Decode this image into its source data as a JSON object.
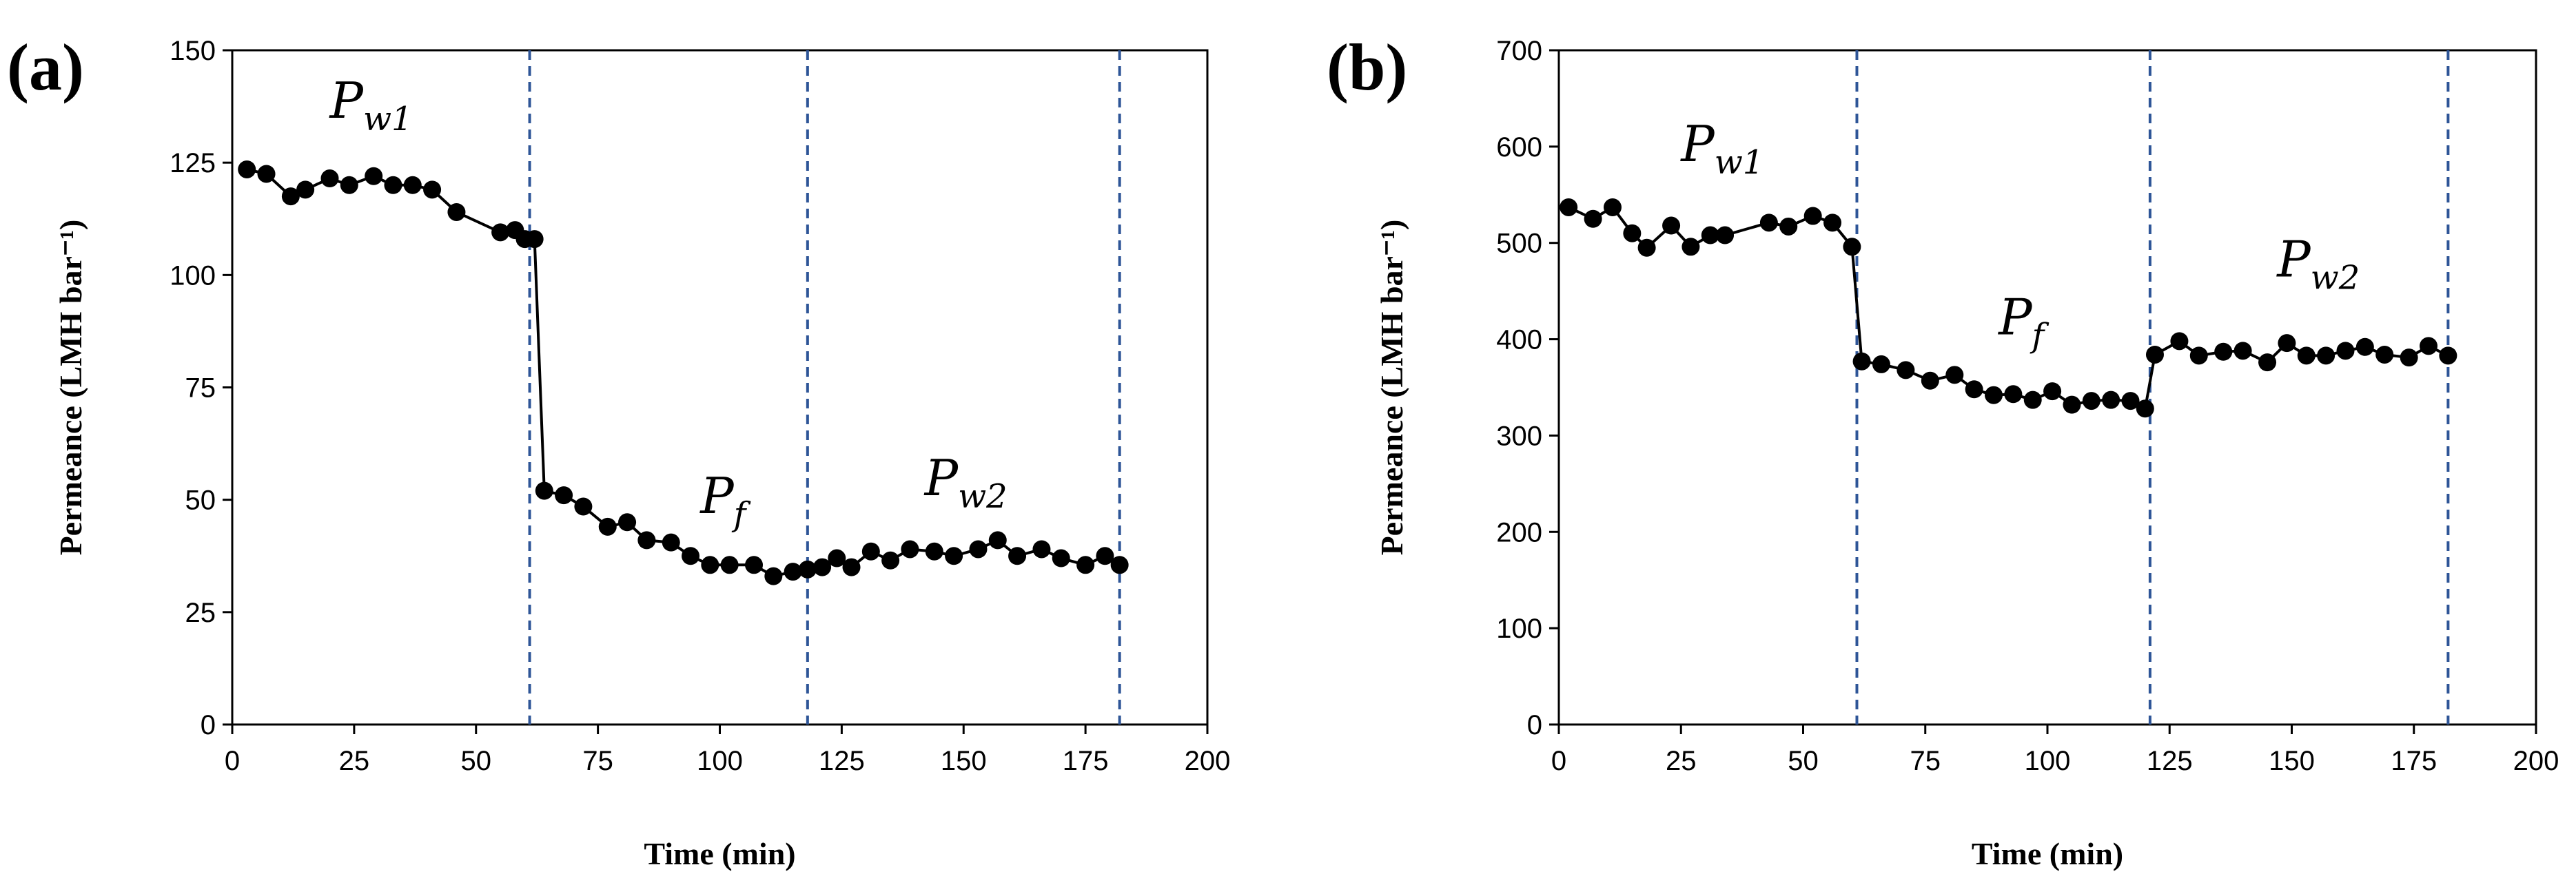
{
  "chart_data": [
    {
      "type": "line",
      "panel_label": "(a)",
      "xlabel": "Time (min)",
      "ylabel": "Permeance (LMH bar⁻¹)",
      "xlim": [
        0,
        200
      ],
      "ylim": [
        0,
        150
      ],
      "xticks": [
        "0",
        "25",
        "50",
        "75",
        "100",
        "125",
        "150",
        "175",
        "200"
      ],
      "yticks": [
        "0",
        "25",
        "50",
        "75",
        "100",
        "125",
        "150"
      ],
      "xtick_values": [
        0,
        25,
        50,
        75,
        100,
        125,
        150,
        175,
        200
      ],
      "ytick_values": [
        0,
        25,
        50,
        75,
        100,
        125,
        150
      ],
      "vlines": [
        61,
        118,
        182
      ],
      "series": [
        {
          "name": "Permeance",
          "x": [
            3,
            7,
            12,
            15,
            20,
            24,
            29,
            33,
            37,
            41,
            46,
            55,
            58,
            60,
            62,
            64,
            68,
            72,
            77,
            81,
            85,
            90,
            94,
            98,
            102,
            107,
            111,
            115,
            118,
            121,
            124,
            127,
            131,
            135,
            139,
            144,
            148,
            153,
            157,
            161,
            166,
            170,
            175,
            179,
            182
          ],
          "values": [
            123.5,
            122.5,
            117.5,
            119,
            121.5,
            120,
            122,
            120,
            120,
            119,
            114,
            109.5,
            110,
            108,
            108,
            52,
            51,
            48.5,
            44,
            45,
            41,
            40.5,
            37.5,
            35.5,
            35.5,
            35.5,
            33,
            34,
            34.5,
            35,
            37,
            35,
            38.5,
            36.5,
            39,
            38.5,
            37.5,
            39,
            41,
            37.5,
            39,
            37,
            35.5,
            37.5,
            35.5
          ]
        }
      ],
      "annotations": [
        {
          "main": "P",
          "sub": "w1",
          "x": 20,
          "y": 135
        },
        {
          "main": "P",
          "sub": "f",
          "x": 96,
          "y": 47
        },
        {
          "main": "P",
          "sub": "w2",
          "x": 142,
          "y": 51
        }
      ]
    },
    {
      "type": "line",
      "panel_label": "(b)",
      "xlabel": "Time (min)",
      "ylabel": "Permeance (LMH bar⁻¹)",
      "xlim": [
        0,
        200
      ],
      "ylim": [
        0,
        700
      ],
      "xticks": [
        "0",
        "25",
        "50",
        "75",
        "100",
        "125",
        "150",
        "175",
        "200"
      ],
      "yticks": [
        "0",
        "100",
        "200",
        "300",
        "400",
        "500",
        "600",
        "700"
      ],
      "xtick_values": [
        0,
        25,
        50,
        75,
        100,
        125,
        150,
        175,
        200
      ],
      "ytick_values": [
        0,
        100,
        200,
        300,
        400,
        500,
        600,
        700
      ],
      "vlines": [
        61,
        121,
        182
      ],
      "series": [
        {
          "name": "Permeance",
          "x": [
            2,
            7,
            11,
            15,
            18,
            23,
            27,
            31,
            34,
            43,
            47,
            52,
            56,
            60,
            62,
            66,
            71,
            76,
            81,
            85,
            89,
            93,
            97,
            101,
            105,
            109,
            113,
            117,
            120,
            122,
            127,
            131,
            136,
            140,
            145,
            149,
            153,
            157,
            161,
            165,
            169,
            174,
            178,
            182
          ],
          "values": [
            537,
            525,
            537,
            510,
            495,
            518,
            496,
            508,
            508,
            521,
            517,
            528,
            521,
            496,
            377,
            374,
            368,
            357,
            363,
            348,
            342,
            343,
            337,
            346,
            332,
            336,
            337,
            336,
            328,
            384,
            398,
            383,
            387,
            388,
            376,
            396,
            383,
            383,
            388,
            392,
            384,
            381,
            393,
            383
          ]
        }
      ],
      "annotations": [
        {
          "main": "P",
          "sub": "w1",
          "x": 25,
          "y": 585
        },
        {
          "main": "P",
          "sub": "f",
          "x": 90,
          "y": 405
        },
        {
          "main": "P",
          "sub": "w2",
          "x": 147,
          "y": 465
        }
      ]
    }
  ],
  "colors": {
    "line": "#000000",
    "marker": "#000000",
    "vline": "#2e5597",
    "axis": "#000000"
  }
}
